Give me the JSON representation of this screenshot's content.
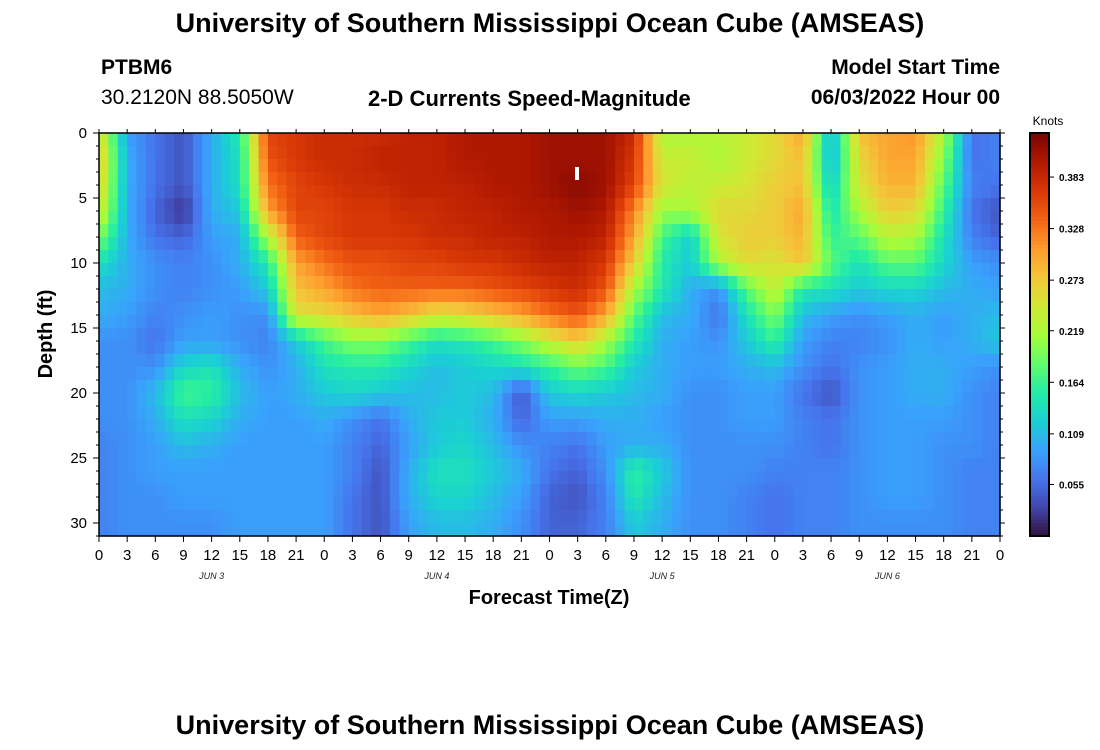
{
  "header": {
    "title": "University of Southern Mississippi Ocean Cube (AMSEAS)",
    "station": "PTBM6",
    "coords": "30.2120N  88.5050W",
    "plot_title": "2-D Currents Speed-Magnitude",
    "model_start_label": "Model Start Time",
    "model_start_value": "06/03/2022 Hour 00"
  },
  "footer": {
    "title": "University of Southern Mississippi Ocean Cube (AMSEAS)"
  },
  "chart_data": {
    "type": "heatmap",
    "title": "2-D Currents Speed-Magnitude",
    "xlabel": "Forecast Time(Z)",
    "ylabel": "Depth (ft)",
    "x_range": [
      0,
      96
    ],
    "y_range": [
      0,
      31
    ],
    "x_tick_values": [
      0,
      3,
      6,
      9,
      12,
      15,
      18,
      21,
      24,
      27,
      30,
      33,
      36,
      39,
      42,
      45,
      48,
      51,
      54,
      57,
      60,
      63,
      66,
      69,
      72,
      75,
      78,
      81,
      84,
      87,
      90,
      93,
      96
    ],
    "x_tick_labels": [
      "0",
      "3",
      "6",
      "9",
      "12",
      "15",
      "18",
      "21",
      "0",
      "3",
      "6",
      "9",
      "12",
      "15",
      "18",
      "21",
      "0",
      "3",
      "6",
      "9",
      "12",
      "15",
      "18",
      "21",
      "0",
      "3",
      "6",
      "9",
      "12",
      "15",
      "18",
      "21",
      "0"
    ],
    "day_labels": [
      {
        "hour": 12,
        "label": "JUN 3"
      },
      {
        "hour": 36,
        "label": "JUN 4"
      },
      {
        "hour": 60,
        "label": "JUN 5"
      },
      {
        "hour": 84,
        "label": "JUN 6"
      }
    ],
    "y_ticks": [
      0,
      5,
      10,
      15,
      20,
      25,
      30
    ],
    "colorbar": {
      "label": "Knots",
      "range": [
        0,
        0.43
      ],
      "ticks": [
        0.055,
        0.109,
        0.164,
        0.219,
        0.273,
        0.328,
        0.383
      ],
      "tick_labels": [
        "0.055",
        "0.109",
        "0.164",
        "0.219",
        "0.273",
        "0.328",
        "0.383"
      ],
      "colors": [
        "#30123b",
        "#4145ab",
        "#4675ed",
        "#39a2fc",
        "#1bcfd4",
        "#24eca6",
        "#61fc6c",
        "#a4fc3b",
        "#d1e834",
        "#f3c63a",
        "#fe9b2d",
        "#f36315",
        "#d93806",
        "#b11901",
        "#7a0403"
      ]
    },
    "time_hours": [
      0,
      3,
      6,
      9,
      12,
      15,
      18,
      21,
      24,
      27,
      30,
      33,
      36,
      39,
      42,
      45,
      48,
      51,
      54,
      57,
      60,
      63,
      66,
      69,
      72,
      75,
      78,
      81,
      84,
      87,
      90,
      93,
      96
    ],
    "depth_ft": [
      0,
      2,
      4,
      6,
      8,
      10,
      12,
      14,
      16,
      18,
      20,
      22,
      24,
      26,
      28,
      30,
      31
    ],
    "speed_knots": [
      [
        0.26,
        0.09,
        0.06,
        0.04,
        0.1,
        0.15,
        0.36,
        0.37,
        0.38,
        0.38,
        0.38,
        0.39,
        0.39,
        0.4,
        0.4,
        0.4,
        0.41,
        0.41,
        0.41,
        0.38,
        0.22,
        0.22,
        0.23,
        0.24,
        0.26,
        0.3,
        0.1,
        0.28,
        0.3,
        0.31,
        0.22,
        0.06,
        0.07
      ],
      [
        0.28,
        0.1,
        0.06,
        0.04,
        0.1,
        0.14,
        0.35,
        0.37,
        0.38,
        0.38,
        0.39,
        0.39,
        0.39,
        0.4,
        0.4,
        0.4,
        0.41,
        0.41,
        0.41,
        0.37,
        0.24,
        0.24,
        0.22,
        0.24,
        0.26,
        0.28,
        0.1,
        0.26,
        0.3,
        0.3,
        0.2,
        0.06,
        0.07
      ],
      [
        0.27,
        0.1,
        0.06,
        0.04,
        0.1,
        0.14,
        0.33,
        0.36,
        0.37,
        0.38,
        0.38,
        0.39,
        0.39,
        0.39,
        0.4,
        0.4,
        0.41,
        0.42,
        0.41,
        0.36,
        0.25,
        0.23,
        0.24,
        0.25,
        0.27,
        0.28,
        0.12,
        0.25,
        0.29,
        0.29,
        0.18,
        0.07,
        0.06
      ],
      [
        0.25,
        0.1,
        0.05,
        0.02,
        0.1,
        0.12,
        0.3,
        0.36,
        0.36,
        0.37,
        0.37,
        0.38,
        0.38,
        0.39,
        0.39,
        0.4,
        0.4,
        0.41,
        0.4,
        0.32,
        0.21,
        0.22,
        0.26,
        0.26,
        0.27,
        0.3,
        0.14,
        0.22,
        0.27,
        0.26,
        0.16,
        0.06,
        0.04
      ],
      [
        0.2,
        0.1,
        0.06,
        0.05,
        0.09,
        0.1,
        0.22,
        0.34,
        0.36,
        0.37,
        0.37,
        0.37,
        0.38,
        0.38,
        0.39,
        0.39,
        0.4,
        0.4,
        0.39,
        0.3,
        0.17,
        0.12,
        0.25,
        0.27,
        0.27,
        0.29,
        0.16,
        0.18,
        0.23,
        0.22,
        0.14,
        0.07,
        0.05
      ],
      [
        0.14,
        0.1,
        0.08,
        0.07,
        0.08,
        0.1,
        0.15,
        0.3,
        0.33,
        0.35,
        0.35,
        0.36,
        0.36,
        0.37,
        0.37,
        0.38,
        0.39,
        0.39,
        0.37,
        0.27,
        0.15,
        0.12,
        0.22,
        0.26,
        0.25,
        0.28,
        0.18,
        0.14,
        0.18,
        0.18,
        0.13,
        0.09,
        0.08
      ],
      [
        0.11,
        0.1,
        0.08,
        0.07,
        0.08,
        0.09,
        0.12,
        0.28,
        0.3,
        0.33,
        0.34,
        0.34,
        0.34,
        0.34,
        0.35,
        0.36,
        0.37,
        0.38,
        0.35,
        0.22,
        0.15,
        0.1,
        0.08,
        0.18,
        0.24,
        0.15,
        0.14,
        0.12,
        0.13,
        0.13,
        0.11,
        0.1,
        0.09
      ],
      [
        0.1,
        0.09,
        0.07,
        0.08,
        0.09,
        0.08,
        0.08,
        0.25,
        0.26,
        0.28,
        0.3,
        0.28,
        0.25,
        0.26,
        0.28,
        0.3,
        0.33,
        0.35,
        0.3,
        0.18,
        0.11,
        0.1,
        0.06,
        0.14,
        0.2,
        0.11,
        0.09,
        0.08,
        0.09,
        0.1,
        0.09,
        0.1,
        0.11
      ],
      [
        0.08,
        0.08,
        0.06,
        0.09,
        0.09,
        0.08,
        0.07,
        0.12,
        0.17,
        0.2,
        0.2,
        0.17,
        0.14,
        0.15,
        0.17,
        0.2,
        0.24,
        0.27,
        0.22,
        0.15,
        0.1,
        0.09,
        0.08,
        0.12,
        0.16,
        0.09,
        0.07,
        0.07,
        0.08,
        0.1,
        0.09,
        0.1,
        0.12
      ],
      [
        0.08,
        0.08,
        0.08,
        0.13,
        0.14,
        0.1,
        0.08,
        0.1,
        0.14,
        0.15,
        0.15,
        0.13,
        0.11,
        0.12,
        0.13,
        0.14,
        0.16,
        0.19,
        0.17,
        0.12,
        0.1,
        0.09,
        0.09,
        0.1,
        0.11,
        0.08,
        0.06,
        0.08,
        0.09,
        0.1,
        0.1,
        0.09,
        0.08
      ],
      [
        0.08,
        0.08,
        0.11,
        0.17,
        0.16,
        0.11,
        0.09,
        0.1,
        0.12,
        0.13,
        0.12,
        0.11,
        0.11,
        0.12,
        0.11,
        0.04,
        0.12,
        0.13,
        0.12,
        0.11,
        0.1,
        0.08,
        0.08,
        0.09,
        0.09,
        0.06,
        0.04,
        0.08,
        0.09,
        0.1,
        0.1,
        0.08,
        0.07
      ],
      [
        0.08,
        0.08,
        0.1,
        0.14,
        0.13,
        0.1,
        0.09,
        0.09,
        0.1,
        0.08,
        0.06,
        0.1,
        0.12,
        0.12,
        0.1,
        0.05,
        0.09,
        0.09,
        0.1,
        0.1,
        0.09,
        0.08,
        0.08,
        0.09,
        0.09,
        0.07,
        0.06,
        0.08,
        0.09,
        0.09,
        0.09,
        0.08,
        0.07
      ],
      [
        0.07,
        0.08,
        0.09,
        0.11,
        0.1,
        0.09,
        0.09,
        0.09,
        0.09,
        0.07,
        0.05,
        0.09,
        0.12,
        0.13,
        0.11,
        0.08,
        0.07,
        0.06,
        0.09,
        0.1,
        0.1,
        0.08,
        0.08,
        0.08,
        0.08,
        0.07,
        0.06,
        0.08,
        0.09,
        0.09,
        0.08,
        0.08,
        0.07
      ],
      [
        0.07,
        0.08,
        0.09,
        0.09,
        0.09,
        0.09,
        0.09,
        0.09,
        0.09,
        0.07,
        0.04,
        0.1,
        0.14,
        0.14,
        0.12,
        0.1,
        0.06,
        0.05,
        0.08,
        0.16,
        0.12,
        0.08,
        0.08,
        0.08,
        0.07,
        0.07,
        0.07,
        0.08,
        0.09,
        0.09,
        0.08,
        0.07,
        0.07
      ],
      [
        0.07,
        0.08,
        0.08,
        0.09,
        0.09,
        0.09,
        0.09,
        0.09,
        0.09,
        0.06,
        0.04,
        0.1,
        0.13,
        0.13,
        0.11,
        0.09,
        0.05,
        0.04,
        0.07,
        0.15,
        0.11,
        0.08,
        0.08,
        0.07,
        0.06,
        0.07,
        0.07,
        0.08,
        0.09,
        0.09,
        0.08,
        0.07,
        0.07
      ],
      [
        0.07,
        0.08,
        0.08,
        0.08,
        0.08,
        0.09,
        0.09,
        0.09,
        0.09,
        0.06,
        0.04,
        0.09,
        0.11,
        0.11,
        0.1,
        0.08,
        0.05,
        0.05,
        0.07,
        0.12,
        0.1,
        0.08,
        0.08,
        0.07,
        0.06,
        0.07,
        0.07,
        0.08,
        0.08,
        0.08,
        0.08,
        0.07,
        0.07
      ],
      [
        0.07,
        0.08,
        0.08,
        0.08,
        0.08,
        0.09,
        0.09,
        0.09,
        0.09,
        0.06,
        0.04,
        0.09,
        0.11,
        0.11,
        0.1,
        0.08,
        0.05,
        0.05,
        0.07,
        0.12,
        0.1,
        0.08,
        0.08,
        0.07,
        0.06,
        0.07,
        0.07,
        0.08,
        0.08,
        0.08,
        0.08,
        0.07,
        0.07
      ]
    ]
  }
}
